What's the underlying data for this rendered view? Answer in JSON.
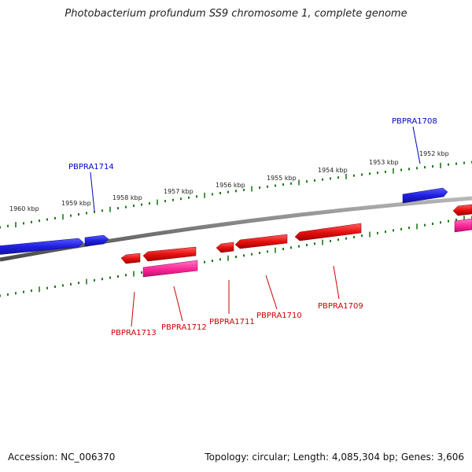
{
  "title": "Photobacterium profundum SS9 chromosome 1, complete genome",
  "footer": {
    "accession": "Accession: NC_006370",
    "topology": "Topology: circular; Length: 4,085,304 bp; Genes: 3,606"
  },
  "colors": {
    "forward_gene": "#1f1fe0",
    "reverse_gene": "#e81010",
    "reverse_rna": "#ff2a9a",
    "backbone": "#808080",
    "tick": "#1f7a1f",
    "forward_label": "#0000cc",
    "reverse_label": "#cc0000"
  },
  "scale_labels": [
    "1952 kbp",
    "1953 kbp",
    "1954 kbp",
    "1955 kbp",
    "1956 kbp",
    "1957 kbp",
    "1958 kbp",
    "1959 kbp",
    "1960 kbp"
  ],
  "gene_labels": {
    "forward": [
      "PBPRA1708",
      "PBPRA1714"
    ],
    "reverse": [
      "PBPRA1709",
      "PBPRA1710",
      "PBPRA1711",
      "PBPRA1712",
      "PBPRA1713"
    ]
  }
}
